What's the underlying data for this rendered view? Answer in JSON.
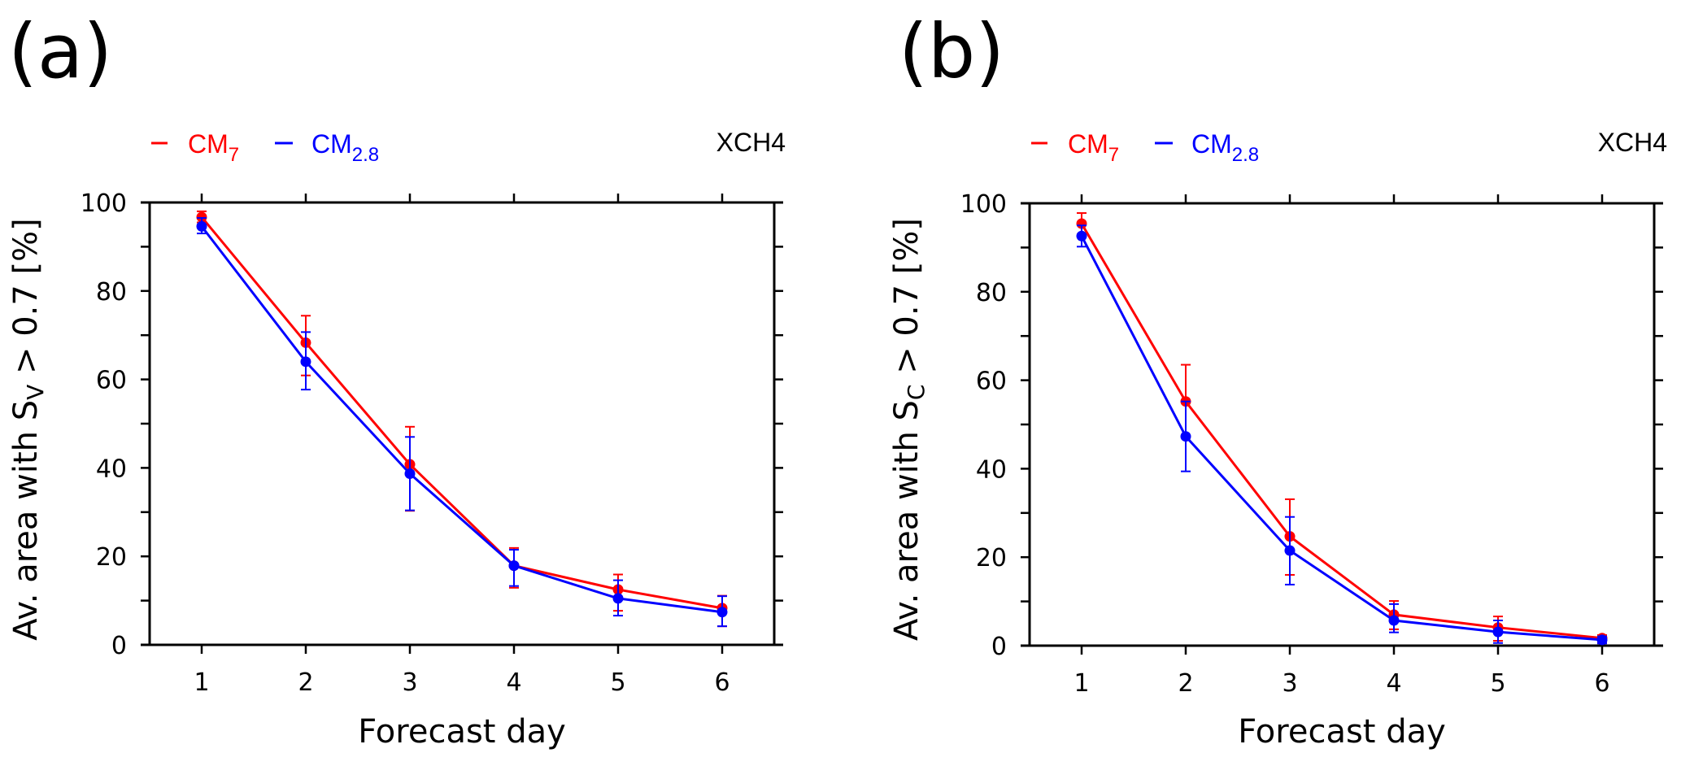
{
  "chart_data": [
    {
      "type": "line",
      "panel_label": "(a)",
      "species": "XCH4",
      "xlabel": "Forecast day",
      "ylabel": {
        "prefix": "Av. area with S",
        "subscript": "V",
        "suffix": " > 0.7 [%]"
      },
      "x": [
        1,
        2,
        3,
        4,
        5,
        6
      ],
      "xticks": [
        "1",
        "2",
        "3",
        "4",
        "5",
        "6"
      ],
      "xlim": [
        0.5,
        6.5
      ],
      "ylim": [
        0,
        100
      ],
      "yticks": [
        "0",
        "20",
        "40",
        "60",
        "80",
        "100"
      ],
      "ytick_values": [
        0,
        20,
        40,
        60,
        80,
        100
      ],
      "minor_ytick_step": 10,
      "grid": false,
      "legend_position": "top-left",
      "series": [
        {
          "name": "CM",
          "subscript": "7",
          "color": "#ff0000",
          "values": [
            96.7,
            68.3,
            40.8,
            17.9,
            12.5,
            8.3
          ],
          "err_low": [
            95.5,
            60.9,
            30.3,
            12.9,
            7.7,
            4.2
          ],
          "err_high": [
            98.0,
            74.4,
            49.3,
            21.9,
            15.9,
            11.1
          ]
        },
        {
          "name": "CM",
          "subscript": "2.8",
          "color": "#0000ff",
          "values": [
            94.6,
            64.0,
            38.7,
            17.9,
            10.5,
            7.4
          ],
          "err_low": [
            93.0,
            57.7,
            30.4,
            13.3,
            6.6,
            4.2
          ],
          "err_high": [
            96.5,
            70.7,
            47.0,
            21.5,
            14.6,
            11.0
          ]
        }
      ]
    },
    {
      "type": "line",
      "panel_label": "(b)",
      "species": "XCH4",
      "xlabel": "Forecast day",
      "ylabel": {
        "prefix": "Av. area with S",
        "subscript": "C",
        "suffix": " > 0.7 [%]"
      },
      "x": [
        1,
        2,
        3,
        4,
        5,
        6
      ],
      "xticks": [
        "1",
        "2",
        "3",
        "4",
        "5",
        "6"
      ],
      "xlim": [
        0.5,
        6.5
      ],
      "ylim": [
        0,
        100
      ],
      "yticks": [
        "0",
        "20",
        "40",
        "60",
        "80",
        "100"
      ],
      "ytick_values": [
        0,
        20,
        40,
        60,
        80,
        100
      ],
      "minor_ytick_step": 10,
      "grid": false,
      "legend_position": "top-left",
      "series": [
        {
          "name": "CM",
          "subscript": "7",
          "color": "#ff0000",
          "values": [
            95.4,
            55.2,
            24.7,
            7.0,
            4.1,
            1.7
          ],
          "err_low": [
            93.0,
            47.0,
            16.0,
            3.7,
            1.1,
            0.8
          ],
          "err_high": [
            97.8,
            63.5,
            33.1,
            10.1,
            6.6,
            2.4
          ]
        },
        {
          "name": "CM",
          "subscript": "2.8",
          "color": "#0000ff",
          "values": [
            92.6,
            47.3,
            21.5,
            5.7,
            3.1,
            1.3
          ],
          "err_low": [
            90.2,
            39.4,
            13.8,
            3.0,
            0.6,
            0.5
          ],
          "err_high": [
            95.0,
            55.2,
            29.1,
            9.4,
            5.7,
            2.1
          ]
        }
      ]
    }
  ]
}
